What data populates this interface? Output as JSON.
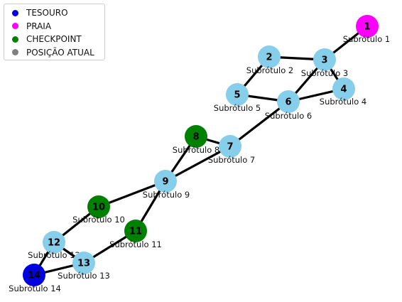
{
  "legend": [
    {
      "label": "TESOURO",
      "color": "#0000e0"
    },
    {
      "label": "PRAIA",
      "color": "#ff00ff"
    },
    {
      "label": "CHECKPOINT",
      "color": "#008000"
    },
    {
      "label": "POSIÇÃO ATUAL",
      "color": "#808080"
    }
  ],
  "nodes": [
    {
      "id": "1",
      "label": "Subrótulo 1",
      "type": "praia"
    },
    {
      "id": "2",
      "label": "Subrótulo 2",
      "type": "normal"
    },
    {
      "id": "3",
      "label": "Subrótulo 3",
      "type": "normal"
    },
    {
      "id": "4",
      "label": "Subrótulo 4",
      "type": "normal"
    },
    {
      "id": "5",
      "label": "Subrótulo 5",
      "type": "normal"
    },
    {
      "id": "6",
      "label": "Subrótulo 6",
      "type": "normal"
    },
    {
      "id": "7",
      "label": "Subrótulo 7",
      "type": "normal"
    },
    {
      "id": "8",
      "label": "Subrótulo 8",
      "type": "checkpoint"
    },
    {
      "id": "9",
      "label": "Subrótulo 9",
      "type": "normal"
    },
    {
      "id": "10",
      "label": "Subrótulo 10",
      "type": "checkpoint"
    },
    {
      "id": "11",
      "label": "Subrótulo 11",
      "type": "checkpoint"
    },
    {
      "id": "12",
      "label": "Subrótulo 12",
      "type": "normal"
    },
    {
      "id": "13",
      "label": "Subrótulo 13",
      "type": "normal"
    },
    {
      "id": "14",
      "label": "Subrótulo 14",
      "type": "tesouro"
    }
  ],
  "edges": [
    [
      "1",
      "3"
    ],
    [
      "2",
      "3"
    ],
    [
      "2",
      "5"
    ],
    [
      "3",
      "4"
    ],
    [
      "3",
      "6"
    ],
    [
      "4",
      "6"
    ],
    [
      "5",
      "6"
    ],
    [
      "6",
      "7"
    ],
    [
      "8",
      "7"
    ],
    [
      "8",
      "9"
    ],
    [
      "9",
      "7"
    ],
    [
      "9",
      "10"
    ],
    [
      "9",
      "11"
    ],
    [
      "10",
      "12"
    ],
    [
      "12",
      "13"
    ],
    [
      "12",
      "14"
    ],
    [
      "13",
      "14"
    ],
    [
      "11",
      "13"
    ]
  ],
  "colors": {
    "normal": "#87ceeb",
    "checkpoint": "#008000",
    "praia": "#ff00ff",
    "tesouro": "#0000e0",
    "edge": "#000000"
  }
}
